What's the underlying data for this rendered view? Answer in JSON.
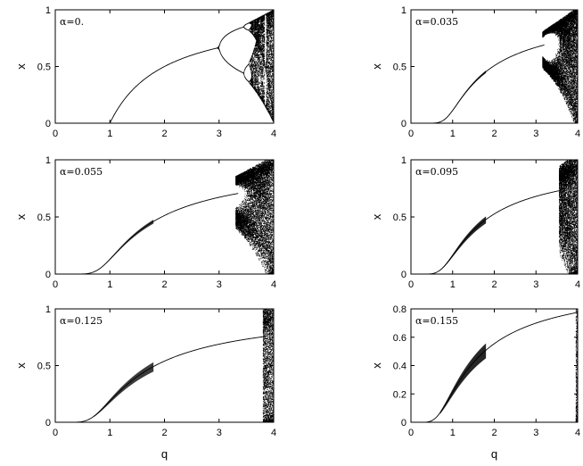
{
  "chart_data": [
    {
      "type": "scatter",
      "title": "",
      "annotation": "α=0.",
      "alpha": 0,
      "xlabel": "",
      "ylabel": "x",
      "xlim": [
        0,
        4
      ],
      "ylim": [
        0,
        1
      ],
      "xticks": [
        "0",
        "1",
        "2",
        "3",
        "4"
      ],
      "yticks": [
        "0",
        "0.5",
        "1"
      ],
      "branch_points": [
        {
          "q": 0,
          "x": 0
        },
        {
          "q": 1,
          "x": 0
        },
        {
          "q": 1.5,
          "x": 0.333
        },
        {
          "q": 2,
          "x": 0.5
        },
        {
          "q": 2.5,
          "x": 0.6
        },
        {
          "q": 3,
          "x": 0.667
        },
        {
          "q": 3.3,
          "x": 0.824
        },
        {
          "q": 3.3,
          "x": 0.479
        },
        {
          "q": 3.5,
          "x": 0.875
        },
        {
          "q": 3.5,
          "x": 0.383
        },
        {
          "q": 3.57,
          "x": 0.892
        },
        {
          "q": 3.57,
          "x": 0.345
        },
        {
          "q": 4,
          "x": 1
        },
        {
          "q": 4,
          "x": 0
        }
      ]
    },
    {
      "type": "scatter",
      "title": "",
      "annotation": "α=0.035",
      "alpha": 0.035,
      "xlabel": "",
      "ylabel": "x",
      "xlim": [
        0,
        4
      ],
      "ylim": [
        0,
        1
      ],
      "xticks": [
        "0",
        "1",
        "2",
        "3",
        "4"
      ],
      "yticks": [
        "0",
        "0.5",
        "1"
      ],
      "branch_points": [
        {
          "q": 0,
          "x": 0
        },
        {
          "q": 0.9,
          "x": 0.005
        },
        {
          "q": 1,
          "x": 0.03
        },
        {
          "q": 1.5,
          "x": 0.32
        },
        {
          "q": 2,
          "x": 0.49
        },
        {
          "q": 2.5,
          "x": 0.6
        },
        {
          "q": 3,
          "x": 0.67
        },
        {
          "q": 3.2,
          "x": 0.69
        },
        {
          "q": 3.6,
          "x": 0.88
        },
        {
          "q": 3.6,
          "x": 0.45
        },
        {
          "q": 4,
          "x": 1
        },
        {
          "q": 4,
          "x": 0
        }
      ]
    },
    {
      "type": "scatter",
      "title": "",
      "annotation": "α=0.055",
      "alpha": 0.055,
      "xlabel": "",
      "ylabel": "x",
      "xlim": [
        0,
        4
      ],
      "ylim": [
        0,
        1
      ],
      "xticks": [
        "0",
        "1",
        "2",
        "3",
        "4"
      ],
      "yticks": [
        "0",
        "0.5",
        "1"
      ],
      "branch_points": [
        {
          "q": 0,
          "x": 0
        },
        {
          "q": 0.9,
          "x": 0.01
        },
        {
          "q": 1,
          "x": 0.05
        },
        {
          "q": 1.5,
          "x": 0.32
        },
        {
          "q": 2,
          "x": 0.49
        },
        {
          "q": 2.5,
          "x": 0.6
        },
        {
          "q": 3,
          "x": 0.67
        },
        {
          "q": 3.35,
          "x": 0.7
        },
        {
          "q": 3.8,
          "x": 0.9
        },
        {
          "q": 3.8,
          "x": 0.4
        },
        {
          "q": 4,
          "x": 0.95
        },
        {
          "q": 4,
          "x": 0.2
        }
      ]
    },
    {
      "type": "scatter",
      "title": "",
      "annotation": "α=0.095",
      "alpha": 0.095,
      "xlabel": "",
      "ylabel": "x",
      "xlim": [
        0,
        4
      ],
      "ylim": [
        0,
        1
      ],
      "xticks": [
        "0",
        "1",
        "2",
        "3",
        "4"
      ],
      "yticks": [
        "0",
        "0.5",
        "1"
      ],
      "branch_points": [
        {
          "q": 0,
          "x": 0
        },
        {
          "q": 0.8,
          "x": 0.01
        },
        {
          "q": 1,
          "x": 0.07
        },
        {
          "q": 1.5,
          "x": 0.32
        },
        {
          "q": 2,
          "x": 0.49
        },
        {
          "q": 2.5,
          "x": 0.6
        },
        {
          "q": 3,
          "x": 0.67
        },
        {
          "q": 3.6,
          "x": 0.72
        },
        {
          "q": 3.85,
          "x": 0.9
        },
        {
          "q": 3.85,
          "x": 0.5
        },
        {
          "q": 4,
          "x": 0.95
        },
        {
          "q": 4,
          "x": 0.3
        }
      ]
    },
    {
      "type": "scatter",
      "title": "",
      "annotation": "α=0.125",
      "alpha": 0.125,
      "xlabel": "q",
      "ylabel": "x",
      "xlim": [
        0,
        4
      ],
      "ylim": [
        0,
        1
      ],
      "xticks": [
        "0",
        "1",
        "2",
        "3",
        "4"
      ],
      "yticks": [
        "0",
        "0.5",
        "1"
      ],
      "branch_points": [
        {
          "q": 0,
          "x": 0
        },
        {
          "q": 0.8,
          "x": 0.01
        },
        {
          "q": 1,
          "x": 0.08
        },
        {
          "q": 1.5,
          "x": 0.33
        },
        {
          "q": 2,
          "x": 0.5
        },
        {
          "q": 2.5,
          "x": 0.6
        },
        {
          "q": 3,
          "x": 0.67
        },
        {
          "q": 3.8,
          "x": 0.74
        },
        {
          "q": 4,
          "x": 0.85
        },
        {
          "q": 4,
          "x": 0.58
        }
      ]
    },
    {
      "type": "scatter",
      "title": "",
      "annotation": "α=0.155",
      "alpha": 0.155,
      "xlabel": "q",
      "ylabel": "x",
      "xlim": [
        0,
        4
      ],
      "ylim": [
        0,
        0.8
      ],
      "xticks": [
        "0",
        "1",
        "2",
        "3",
        "4"
      ],
      "yticks": [
        "0",
        "0.2",
        "0.4",
        "0.6",
        "0.8"
      ],
      "branch_points": [
        {
          "q": 0,
          "x": 0
        },
        {
          "q": 0.7,
          "x": 0.01
        },
        {
          "q": 1,
          "x": 0.08
        },
        {
          "q": 1.5,
          "x": 0.33
        },
        {
          "q": 2,
          "x": 0.5
        },
        {
          "q": 2.5,
          "x": 0.6
        },
        {
          "q": 3,
          "x": 0.67
        },
        {
          "q": 3.5,
          "x": 0.72
        },
        {
          "q": 4,
          "x": 0.76
        }
      ]
    }
  ]
}
